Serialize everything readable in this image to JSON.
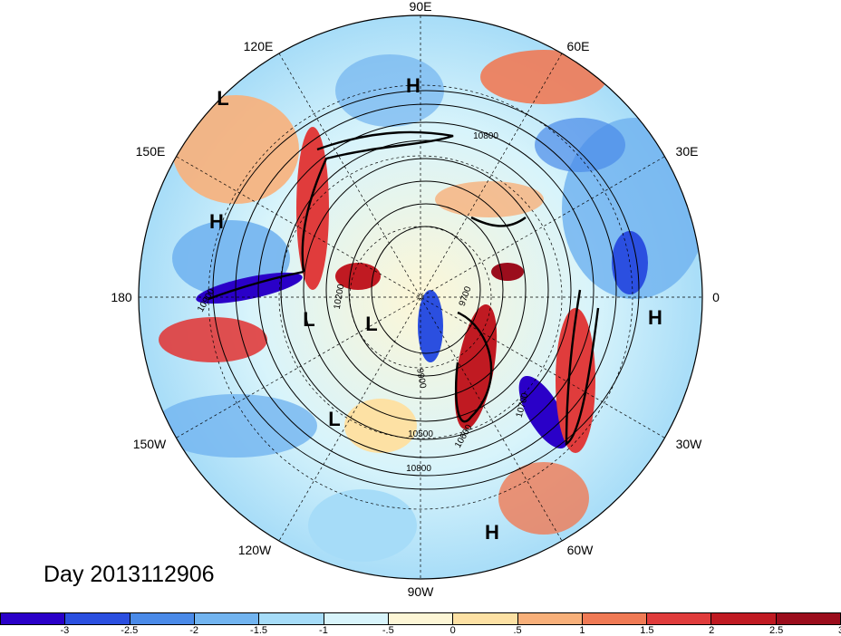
{
  "map": {
    "title": "Day 2013112906",
    "projection": "north polar stereographic",
    "longitude_labels": {
      "top": "90E",
      "top_right": "60E",
      "upper_right": "30E",
      "right": "0",
      "lower_right": "30W",
      "bottom_right": "60W",
      "bottom": "90W",
      "bottom_left": "120W",
      "lower_left": "150W",
      "left": "180",
      "upper_left": "150E",
      "top_left": "120E"
    },
    "pressure_centers": [
      {
        "label": "L",
        "region": "east-siberia"
      },
      {
        "label": "H",
        "region": "central-siberia"
      },
      {
        "label": "H",
        "region": "north-pacific"
      },
      {
        "label": "L",
        "region": "bering-sea"
      },
      {
        "label": "L",
        "region": "alaska"
      },
      {
        "label": "L",
        "region": "pacific-northwest"
      },
      {
        "label": "H",
        "region": "north-africa"
      },
      {
        "label": "H",
        "region": "caribbean"
      }
    ],
    "contour_labels": [
      "10800",
      "10900",
      "10200",
      "9700",
      "9900",
      "10500",
      "10800",
      "10700",
      "10600"
    ]
  },
  "colorbar": {
    "colors": [
      "#2a00c8",
      "#2b4fe0",
      "#4a8ae8",
      "#72b4f0",
      "#a6dcf8",
      "#d8f4fb",
      "#fdf6d6",
      "#fde1a4",
      "#f8b07a",
      "#f07a55",
      "#e03c3c",
      "#c01a22",
      "#9b0d1c"
    ],
    "ticks": [
      "-3",
      "-2.5",
      "-2",
      "-1.5",
      "-1",
      "-.5",
      "0",
      ".5",
      "1",
      "1.5",
      "2",
      "2.5",
      "3"
    ]
  }
}
